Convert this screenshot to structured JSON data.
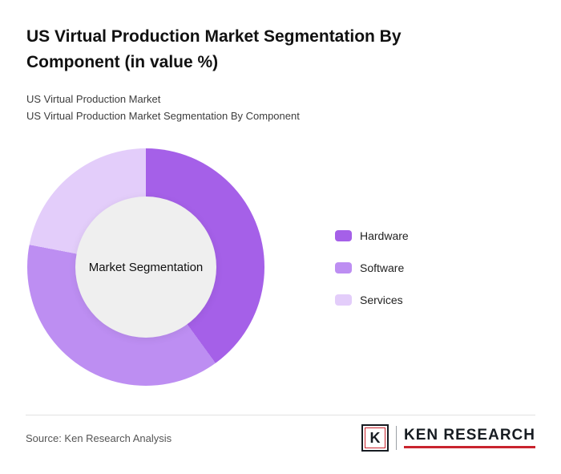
{
  "header": {
    "title": "US Virtual Production Market Segmentation By Component (in value %)",
    "subtitle_line1": "US Virtual Production Market",
    "subtitle_line2": "US Virtual Production Market Segmentation By Component"
  },
  "chart_data": {
    "type": "pie",
    "donut": true,
    "title": "US Virtual Production Market Segmentation By Component (in value %)",
    "center_label": "Market Segmentation",
    "categories": [
      "Hardware",
      "Software",
      "Services"
    ],
    "values": [
      40,
      38,
      22
    ],
    "unit": "value %",
    "colors": [
      "#a560e8",
      "#bd8ef2",
      "#e3cdfa"
    ],
    "center_color": "#efefef",
    "legend_position": "right",
    "start_angle_deg": 0
  },
  "footer": {
    "source": "Source: Ken Research Analysis",
    "logo": {
      "letter": "K",
      "text": "KEN RESEARCH",
      "accent_color": "#c9242e"
    }
  }
}
